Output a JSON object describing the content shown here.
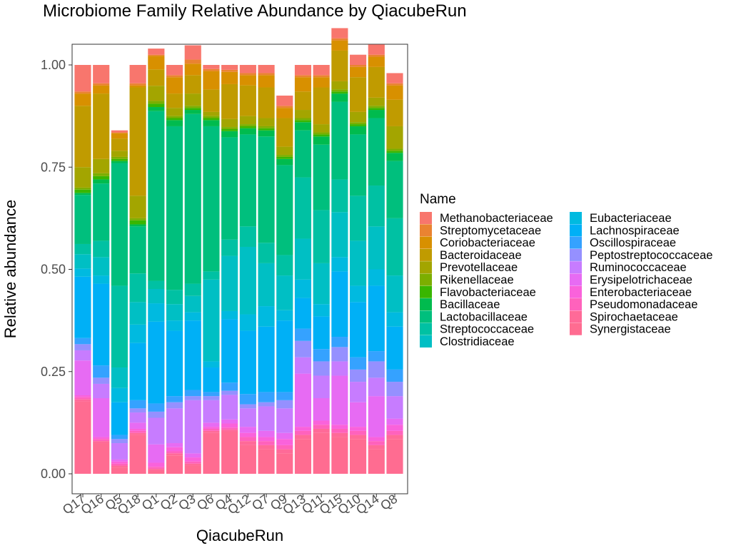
{
  "chart_data": {
    "type": "bar",
    "stacked": true,
    "title": "Microbiome Family Relative Abundance by QiacubeRun",
    "xlabel": "QiacubeRun",
    "ylabel": "Relative abundance",
    "ylim": [
      0,
      1
    ],
    "yticks": [
      "0.00",
      "0.25",
      "0.50",
      "0.75",
      "1.00"
    ],
    "ytick_values": [
      0,
      0.25,
      0.5,
      0.75,
      1.0
    ],
    "grid": false,
    "legend_title": "Name",
    "legend_position": "right",
    "categories": [
      "Q17",
      "Q16",
      "Q5",
      "Q18",
      "Q1",
      "Q2",
      "Q3",
      "Q6",
      "Q4",
      "Q12",
      "Q7",
      "Q9",
      "Q13",
      "Q11",
      "Q15",
      "Q10",
      "Q14",
      "Q8"
    ],
    "series": [
      {
        "name": "Methanobacteriaceae",
        "color": "#F8766D",
        "values": [
          0.065,
          0.045,
          0.005,
          0.045,
          0.015,
          0.025,
          0.035,
          0.01,
          0.012,
          0.02,
          0.02,
          0.025,
          0.025,
          0.025,
          0.025,
          0.025,
          0.025,
          0.025
        ]
      },
      {
        "name": "Streptomycetaceae",
        "color": "#EA8331",
        "values": [
          0.005,
          0.005,
          0.002,
          0.005,
          0.003,
          0.005,
          0.01,
          0.005,
          0.005,
          0.005,
          0.005,
          0.005,
          0.005,
          0.005,
          0.005,
          0.005,
          0.005,
          0.005
        ]
      },
      {
        "name": "Coriobacteriaceae",
        "color": "#D89000",
        "values": [
          0.03,
          0.02,
          0.013,
          0.005,
          0.033,
          0.04,
          0.028,
          0.045,
          0.03,
          0.025,
          0.03,
          0.025,
          0.035,
          0.025,
          0.025,
          0.025,
          0.025,
          0.035
        ]
      },
      {
        "name": "Bacteroidaceae",
        "color": "#C09B00",
        "values": [
          0.15,
          0.16,
          0.03,
          0.265,
          0.04,
          0.035,
          0.045,
          0.055,
          0.085,
          0.075,
          0.075,
          0.07,
          0.045,
          0.09,
          0.075,
          0.085,
          0.075,
          0.065
        ]
      },
      {
        "name": "Prevotellaceae",
        "color": "#A3A500",
        "values": [
          0.05,
          0.035,
          0.015,
          0.055,
          0.037,
          0.02,
          0.03,
          0.01,
          0.02,
          0.02,
          0.02,
          0.02,
          0.02,
          0.02,
          0.02,
          0.025,
          0.02,
          0.055
        ]
      },
      {
        "name": "Rikenellaceae",
        "color": "#7CAE00",
        "values": [
          0.005,
          0.007,
          0.005,
          0.005,
          0.007,
          0.005,
          0.005,
          0.005,
          0.005,
          0.005,
          0.005,
          0.005,
          0.005,
          0.005,
          0.005,
          0.005,
          0.005,
          0.005
        ]
      },
      {
        "name": "Flavobacteriaceae",
        "color": "#39B600",
        "values": [
          0.008,
          0.008,
          0.005,
          0.01,
          0.008,
          0.005,
          0.005,
          0.005,
          0.005,
          0.005,
          0.005,
          0.005,
          0.005,
          0.005,
          0.005,
          0.005,
          0.005,
          0.005
        ]
      },
      {
        "name": "Bacillaceae",
        "color": "#00BB4E",
        "values": [
          0.005,
          0.01,
          0.005,
          0.005,
          0.01,
          0.015,
          0.01,
          0.015,
          0.015,
          0.015,
          0.015,
          0.015,
          0.02,
          0.02,
          0.02,
          0.02,
          0.02,
          0.02
        ]
      },
      {
        "name": "Lactobacillaceae",
        "color": "#00BF7D",
        "values": [
          0.12,
          0.14,
          0.3,
          0.115,
          0.415,
          0.4,
          0.415,
          0.355,
          0.25,
          0.225,
          0.26,
          0.22,
          0.115,
          0.16,
          0.19,
          0.15,
          0.165,
          0.14
        ]
      },
      {
        "name": "Streptococcaceae",
        "color": "#00C1A3",
        "values": [
          0.025,
          0.04,
          0.2,
          0.07,
          0.02,
          0.035,
          0.03,
          0.02,
          0.04,
          0.05,
          0.05,
          0.05,
          0.15,
          0.13,
          0.08,
          0.11,
          0.1,
          0.14
        ]
      },
      {
        "name": "Clostridiaceae",
        "color": "#00BFC4",
        "values": [
          0.035,
          0.045,
          0.05,
          0.055,
          0.035,
          0.04,
          0.04,
          0.2,
          0.135,
          0.165,
          0.105,
          0.085,
          0.1,
          0.1,
          0.11,
          0.11,
          0.105,
          0.09
        ]
      },
      {
        "name": "Eubacteriaceae",
        "color": "#00BAE0",
        "values": [
          0.02,
          0.02,
          0.035,
          0.045,
          0.045,
          0.025,
          0.02,
          0.015,
          0.02,
          0.04,
          0.05,
          0.025,
          0.045,
          0.03,
          0.035,
          0.04,
          0.04,
          0.035
        ]
      },
      {
        "name": "Lachnospiraceae",
        "color": "#00B0F6",
        "values": [
          0.15,
          0.2,
          0.08,
          0.14,
          0.2,
          0.16,
          0.17,
          0.06,
          0.155,
          0.155,
          0.16,
          0.175,
          0.075,
          0.08,
          0.16,
          0.135,
          0.16,
          0.105
        ]
      },
      {
        "name": "Oscillospiraceae",
        "color": "#35A2FF",
        "values": [
          0.015,
          0.03,
          0.01,
          0.02,
          0.02,
          0.015,
          0.015,
          0.01,
          0.02,
          0.025,
          0.025,
          0.02,
          0.03,
          0.03,
          0.025,
          0.03,
          0.025,
          0.03
        ]
      },
      {
        "name": "Peptostreptococcaceae",
        "color": "#9590FF",
        "values": [
          0.015,
          0.015,
          0.01,
          0.01,
          0.015,
          0.015,
          0.01,
          0.01,
          0.01,
          0.01,
          0.01,
          0.02,
          0.04,
          0.035,
          0.035,
          0.03,
          0.04,
          0.035
        ]
      },
      {
        "name": "Ruminococcaceae",
        "color": "#C77CFF",
        "values": [
          0.025,
          0.035,
          0.04,
          0.025,
          0.065,
          0.085,
          0.13,
          0.055,
          0.06,
          0.045,
          0.06,
          0.06,
          0.04,
          0.055,
          0.035,
          0.05,
          0.045,
          0.055
        ]
      },
      {
        "name": "Erysipelotrichaceae",
        "color": "#E76BF3",
        "values": [
          0.085,
          0.095,
          0.005,
          0.015,
          0.045,
          0.01,
          0.01,
          0.01,
          0.01,
          0.015,
          0.015,
          0.015,
          0.13,
          0.055,
          0.12,
          0.06,
          0.1,
          0.015
        ]
      },
      {
        "name": "Enterobacteriaceae",
        "color": "#FA62DB",
        "values": [
          0.005,
          0.005,
          0.005,
          0.005,
          0.01,
          0.01,
          0.01,
          0.005,
          0.01,
          0.01,
          0.01,
          0.015,
          0.01,
          0.01,
          0.01,
          0.01,
          0.01,
          0.015
        ]
      },
      {
        "name": "Pseudomonadaceae",
        "color": "#FF62BC",
        "values": [
          0.005,
          0.005,
          0.005,
          0.005,
          0.005,
          0.005,
          0.005,
          0.005,
          0.005,
          0.01,
          0.01,
          0.01,
          0.01,
          0.01,
          0.01,
          0.01,
          0.01,
          0.01
        ]
      },
      {
        "name": "Spirochaetaceae",
        "color": "#FF6A98",
        "values": [
          0.005,
          0.005,
          0.005,
          0.005,
          0.005,
          0.005,
          0.005,
          0.005,
          0.005,
          0.01,
          0.01,
          0.01,
          0.01,
          0.01,
          0.01,
          0.01,
          0.01,
          0.01
        ]
      },
      {
        "name": "Synergistaceae",
        "color": "#FF6C91",
        "values": [
          0.177,
          0.075,
          0.015,
          0.095,
          0.007,
          0.045,
          0.02,
          0.1,
          0.103,
          0.07,
          0.06,
          0.05,
          0.085,
          0.1,
          0.09,
          0.085,
          0.06,
          0.085
        ]
      }
    ]
  }
}
